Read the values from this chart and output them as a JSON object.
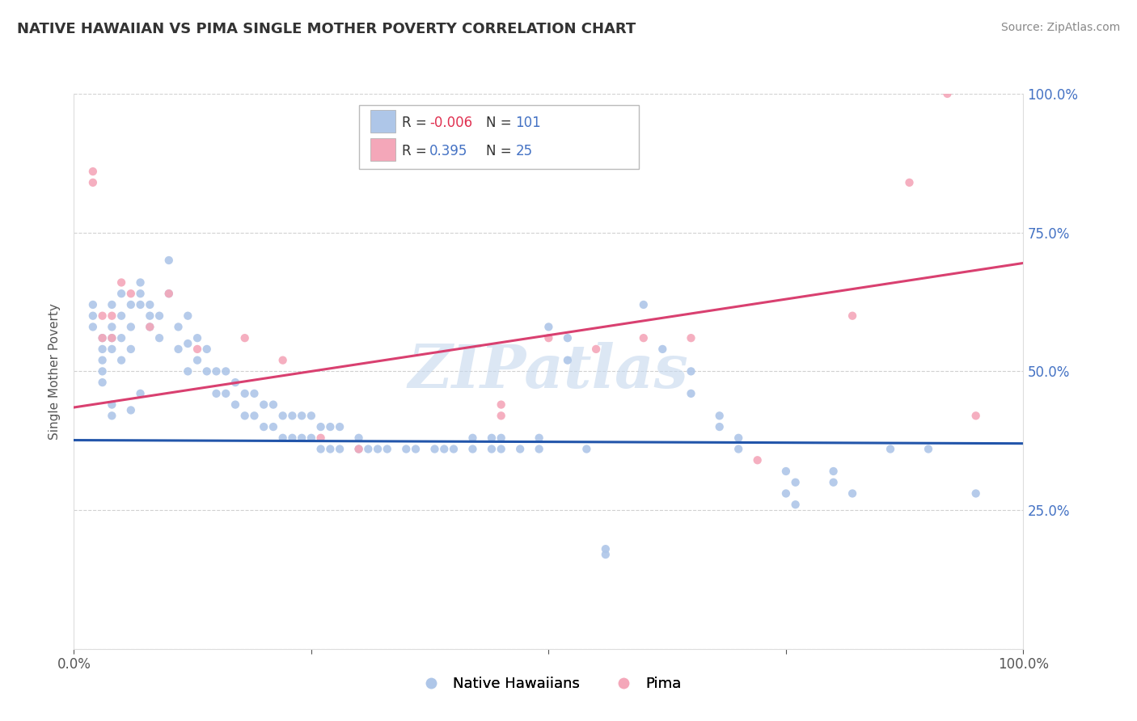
{
  "title": "NATIVE HAWAIIAN VS PIMA SINGLE MOTHER POVERTY CORRELATION CHART",
  "source": "Source: ZipAtlas.com",
  "ylabel": "Single Mother Poverty",
  "xlim": [
    0.0,
    1.0
  ],
  "ylim": [
    0.0,
    1.0
  ],
  "watermark": "ZIPatlas",
  "blue_color": "#aec6e8",
  "pink_color": "#f4a7b9",
  "blue_line_color": "#2255aa",
  "pink_line_color": "#d94070",
  "blue_scatter": [
    [
      0.02,
      0.62
    ],
    [
      0.02,
      0.6
    ],
    [
      0.02,
      0.58
    ],
    [
      0.03,
      0.56
    ],
    [
      0.03,
      0.54
    ],
    [
      0.03,
      0.52
    ],
    [
      0.03,
      0.5
    ],
    [
      0.03,
      0.48
    ],
    [
      0.04,
      0.62
    ],
    [
      0.04,
      0.58
    ],
    [
      0.04,
      0.56
    ],
    [
      0.04,
      0.54
    ],
    [
      0.05,
      0.6
    ],
    [
      0.05,
      0.56
    ],
    [
      0.05,
      0.52
    ],
    [
      0.05,
      0.64
    ],
    [
      0.06,
      0.62
    ],
    [
      0.06,
      0.58
    ],
    [
      0.06,
      0.54
    ],
    [
      0.07,
      0.66
    ],
    [
      0.07,
      0.64
    ],
    [
      0.07,
      0.62
    ],
    [
      0.08,
      0.62
    ],
    [
      0.08,
      0.6
    ],
    [
      0.08,
      0.58
    ],
    [
      0.09,
      0.6
    ],
    [
      0.09,
      0.56
    ],
    [
      0.1,
      0.7
    ],
    [
      0.1,
      0.64
    ],
    [
      0.11,
      0.58
    ],
    [
      0.11,
      0.54
    ],
    [
      0.12,
      0.6
    ],
    [
      0.12,
      0.55
    ],
    [
      0.12,
      0.5
    ],
    [
      0.13,
      0.56
    ],
    [
      0.13,
      0.52
    ],
    [
      0.14,
      0.54
    ],
    [
      0.14,
      0.5
    ],
    [
      0.15,
      0.5
    ],
    [
      0.15,
      0.46
    ],
    [
      0.16,
      0.5
    ],
    [
      0.16,
      0.46
    ],
    [
      0.17,
      0.48
    ],
    [
      0.17,
      0.44
    ],
    [
      0.18,
      0.46
    ],
    [
      0.18,
      0.42
    ],
    [
      0.19,
      0.46
    ],
    [
      0.19,
      0.42
    ],
    [
      0.2,
      0.44
    ],
    [
      0.2,
      0.4
    ],
    [
      0.21,
      0.44
    ],
    [
      0.21,
      0.4
    ],
    [
      0.22,
      0.42
    ],
    [
      0.22,
      0.38
    ],
    [
      0.23,
      0.42
    ],
    [
      0.23,
      0.38
    ],
    [
      0.24,
      0.42
    ],
    [
      0.24,
      0.38
    ],
    [
      0.25,
      0.42
    ],
    [
      0.25,
      0.38
    ],
    [
      0.26,
      0.4
    ],
    [
      0.26,
      0.36
    ],
    [
      0.27,
      0.4
    ],
    [
      0.27,
      0.36
    ],
    [
      0.28,
      0.4
    ],
    [
      0.28,
      0.36
    ],
    [
      0.3,
      0.38
    ],
    [
      0.3,
      0.36
    ],
    [
      0.31,
      0.36
    ],
    [
      0.32,
      0.36
    ],
    [
      0.33,
      0.36
    ],
    [
      0.35,
      0.36
    ],
    [
      0.36,
      0.36
    ],
    [
      0.38,
      0.36
    ],
    [
      0.39,
      0.36
    ],
    [
      0.4,
      0.36
    ],
    [
      0.42,
      0.38
    ],
    [
      0.42,
      0.36
    ],
    [
      0.44,
      0.38
    ],
    [
      0.44,
      0.36
    ],
    [
      0.45,
      0.38
    ],
    [
      0.45,
      0.36
    ],
    [
      0.47,
      0.36
    ],
    [
      0.49,
      0.38
    ],
    [
      0.49,
      0.36
    ],
    [
      0.5,
      0.58
    ],
    [
      0.52,
      0.56
    ],
    [
      0.52,
      0.52
    ],
    [
      0.54,
      0.36
    ],
    [
      0.56,
      0.18
    ],
    [
      0.56,
      0.17
    ],
    [
      0.6,
      0.62
    ],
    [
      0.62,
      0.54
    ],
    [
      0.65,
      0.5
    ],
    [
      0.65,
      0.46
    ],
    [
      0.68,
      0.42
    ],
    [
      0.68,
      0.4
    ],
    [
      0.7,
      0.38
    ],
    [
      0.7,
      0.36
    ],
    [
      0.75,
      0.32
    ],
    [
      0.75,
      0.28
    ],
    [
      0.76,
      0.3
    ],
    [
      0.76,
      0.26
    ],
    [
      0.8,
      0.32
    ],
    [
      0.8,
      0.3
    ],
    [
      0.82,
      0.28
    ],
    [
      0.86,
      0.36
    ],
    [
      0.9,
      0.36
    ],
    [
      0.95,
      0.28
    ],
    [
      0.04,
      0.44
    ],
    [
      0.04,
      0.42
    ],
    [
      0.06,
      0.43
    ],
    [
      0.07,
      0.46
    ]
  ],
  "pink_scatter": [
    [
      0.02,
      0.86
    ],
    [
      0.02,
      0.84
    ],
    [
      0.03,
      0.6
    ],
    [
      0.03,
      0.56
    ],
    [
      0.04,
      0.6
    ],
    [
      0.04,
      0.56
    ],
    [
      0.05,
      0.66
    ],
    [
      0.06,
      0.64
    ],
    [
      0.08,
      0.58
    ],
    [
      0.1,
      0.64
    ],
    [
      0.13,
      0.54
    ],
    [
      0.18,
      0.56
    ],
    [
      0.22,
      0.52
    ],
    [
      0.26,
      0.38
    ],
    [
      0.3,
      0.36
    ],
    [
      0.45,
      0.44
    ],
    [
      0.45,
      0.42
    ],
    [
      0.5,
      0.56
    ],
    [
      0.55,
      0.54
    ],
    [
      0.6,
      0.56
    ],
    [
      0.65,
      0.56
    ],
    [
      0.72,
      0.34
    ],
    [
      0.82,
      0.6
    ],
    [
      0.88,
      0.84
    ],
    [
      0.92,
      1.0
    ],
    [
      0.95,
      0.42
    ]
  ],
  "blue_line_x": [
    0.0,
    1.0
  ],
  "blue_line_y": [
    0.376,
    0.37
  ],
  "pink_line_x": [
    0.0,
    1.0
  ],
  "pink_line_y": [
    0.435,
    0.695
  ]
}
